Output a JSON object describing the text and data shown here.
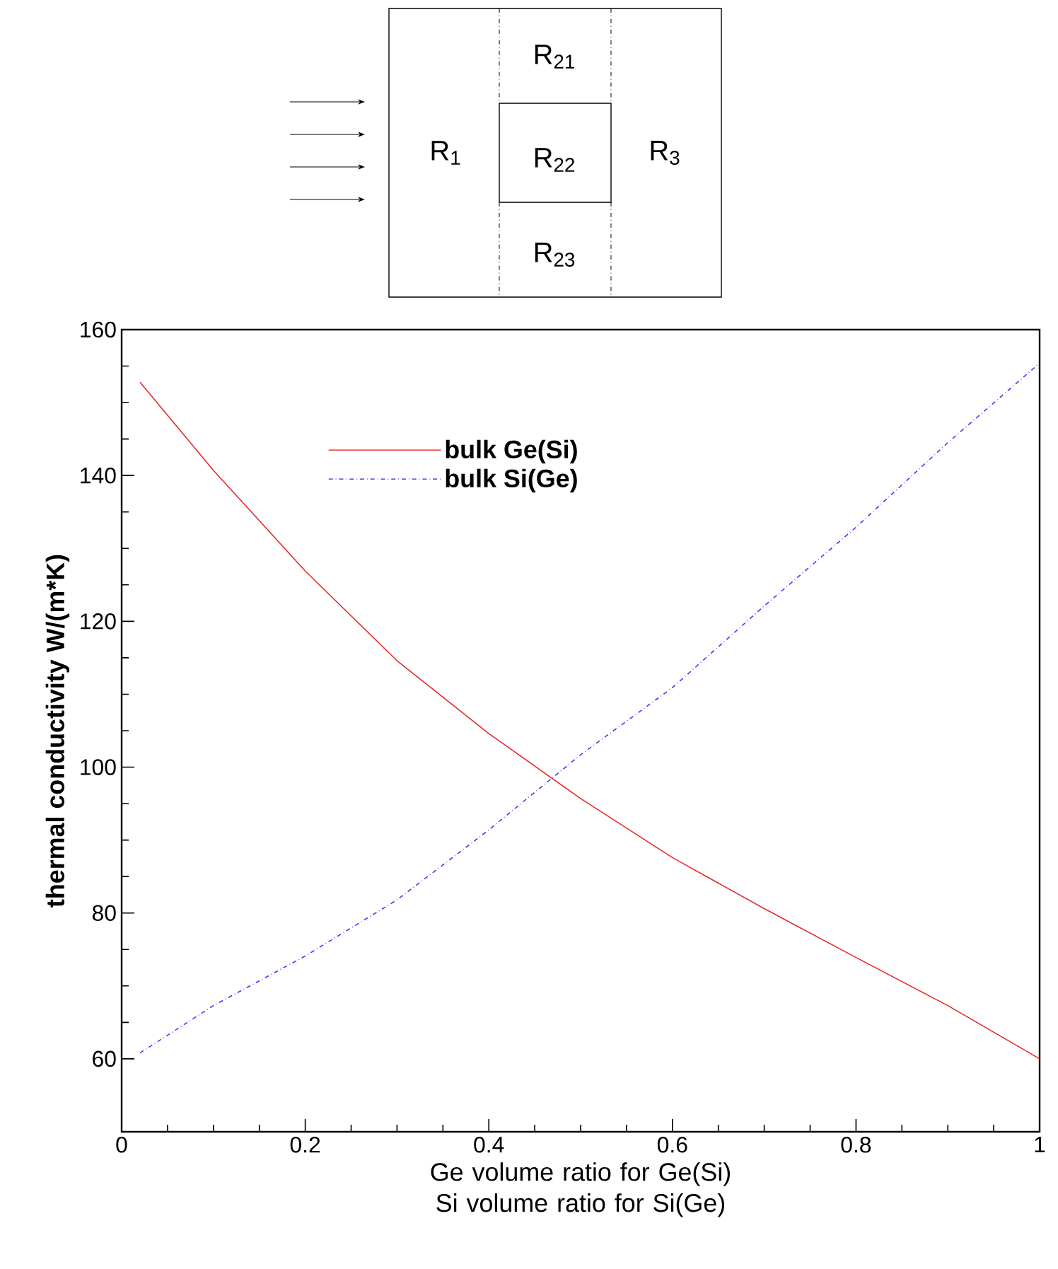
{
  "chart_data": {
    "type": "line",
    "xlabel": "Ge volume ratio for Ge(Si) Si volume ratio for Si(Ge)",
    "ylabel": "thermal conductivity W/(m*K)",
    "xlim": [
      0,
      1
    ],
    "ylim": [
      50,
      160
    ],
    "xticks": [
      0,
      0.2,
      0.4,
      0.6,
      0.8,
      1
    ],
    "yticks": [
      60,
      80,
      100,
      120,
      140,
      160
    ],
    "legend": "top",
    "grid": false,
    "marker": "none",
    "series": [
      {
        "name": "bulk Ge(Si)",
        "color": "#e8282a",
        "line_style": "solid",
        "x": [
          0.02,
          0.1,
          0.2,
          0.3,
          0.4,
          0.5,
          0.6,
          0.7,
          0.8,
          0.9,
          1.0
        ],
        "values": [
          152.8,
          140.7,
          126.9,
          114.6,
          104.6,
          95.7,
          87.6,
          80.6,
          73.9,
          67.3,
          60
        ]
      },
      {
        "name": "bulk Si(Ge)",
        "color": "#3a3aff",
        "line_style": "dashdot",
        "x": [
          0.02,
          0.1,
          0.2,
          0.3,
          0.4,
          0.5,
          0.6,
          0.7,
          0.8,
          0.9,
          1.0
        ],
        "values": [
          60.8,
          67.3,
          74.1,
          81.8,
          91.4,
          101.7,
          110.9,
          122.1,
          132.9,
          144.5,
          155.4
        ]
      }
    ],
    "annotations": [
      "R$_{21}$",
      "R$_{1}$",
      "R$_{22}$",
      "R$_{3}$",
      "R$_{23}$"
    ]
  }
}
